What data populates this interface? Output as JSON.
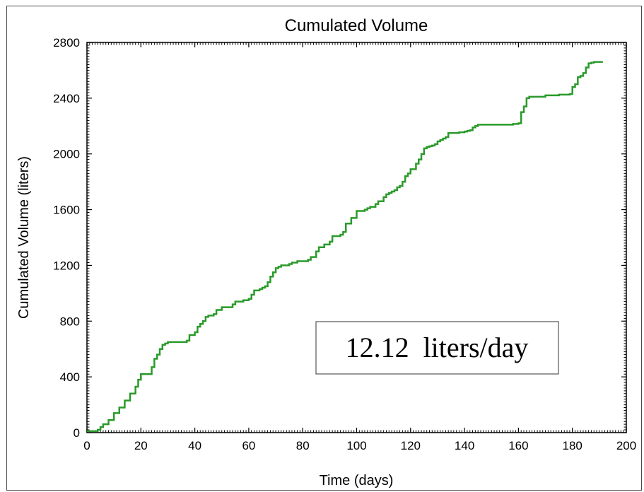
{
  "chart_data": {
    "type": "line",
    "title": "Cumulated Volume",
    "xlabel": "Time (days)",
    "ylabel": "Cumulated Volume (liters)",
    "xlim": [
      0,
      200
    ],
    "ylim": [
      0,
      2800
    ],
    "xticks": [
      0,
      20,
      40,
      60,
      80,
      100,
      120,
      140,
      160,
      180,
      200
    ],
    "yticks": [
      0,
      400,
      800,
      1200,
      1600,
      2000,
      2400,
      2800
    ],
    "grid": false,
    "line_style": "step",
    "series": [
      {
        "color": "#2a9a2a",
        "x": [
          0,
          4,
          5,
          6,
          8,
          10,
          12,
          14,
          16,
          18,
          19,
          20,
          24,
          25,
          26,
          27,
          28,
          29,
          30,
          34,
          37,
          38,
          40,
          41,
          42,
          43,
          44,
          45,
          47,
          48,
          50,
          54,
          55,
          58,
          60,
          61,
          62,
          64,
          65,
          66,
          67,
          68,
          69,
          70,
          71,
          72,
          75,
          76,
          78,
          82,
          83,
          85,
          86,
          88,
          90,
          91,
          94,
          95,
          96,
          98,
          100,
          103,
          104,
          105,
          107,
          108,
          110,
          111,
          112,
          113,
          114,
          115,
          116,
          117,
          118,
          119,
          120,
          122,
          123,
          124,
          125,
          126,
          127,
          128,
          129,
          130,
          131,
          132,
          133,
          134,
          138,
          140,
          141,
          142,
          143,
          144,
          145,
          150,
          155,
          158,
          160,
          161,
          162,
          163,
          164,
          170,
          175,
          178,
          179,
          180,
          181,
          182,
          183,
          184,
          185,
          186,
          187,
          188,
          191
        ],
        "y": [
          10,
          20,
          40,
          60,
          90,
          140,
          180,
          230,
          280,
          330,
          380,
          420,
          470,
          530,
          560,
          600,
          630,
          640,
          650,
          650,
          660,
          700,
          720,
          760,
          780,
          800,
          830,
          840,
          850,
          880,
          900,
          920,
          940,
          950,
          960,
          990,
          1020,
          1030,
          1040,
          1050,
          1080,
          1120,
          1150,
          1180,
          1190,
          1200,
          1210,
          1220,
          1230,
          1240,
          1260,
          1300,
          1330,
          1350,
          1370,
          1410,
          1420,
          1440,
          1500,
          1540,
          1590,
          1600,
          1610,
          1620,
          1640,
          1660,
          1690,
          1710,
          1720,
          1730,
          1740,
          1760,
          1770,
          1800,
          1840,
          1860,
          1890,
          1930,
          1960,
          2000,
          2040,
          2050,
          2055,
          2060,
          2070,
          2090,
          2100,
          2110,
          2120,
          2150,
          2155,
          2160,
          2165,
          2170,
          2190,
          2200,
          2210,
          2210,
          2210,
          2215,
          2220,
          2300,
          2340,
          2400,
          2410,
          2420,
          2425,
          2425,
          2430,
          2480,
          2500,
          2550,
          2560,
          2580,
          2620,
          2650,
          2655,
          2660,
          2665
        ]
      }
    ],
    "annotations": [
      {
        "text": "12.12  liters/day",
        "position": "lower-right",
        "boxed": true
      }
    ]
  }
}
